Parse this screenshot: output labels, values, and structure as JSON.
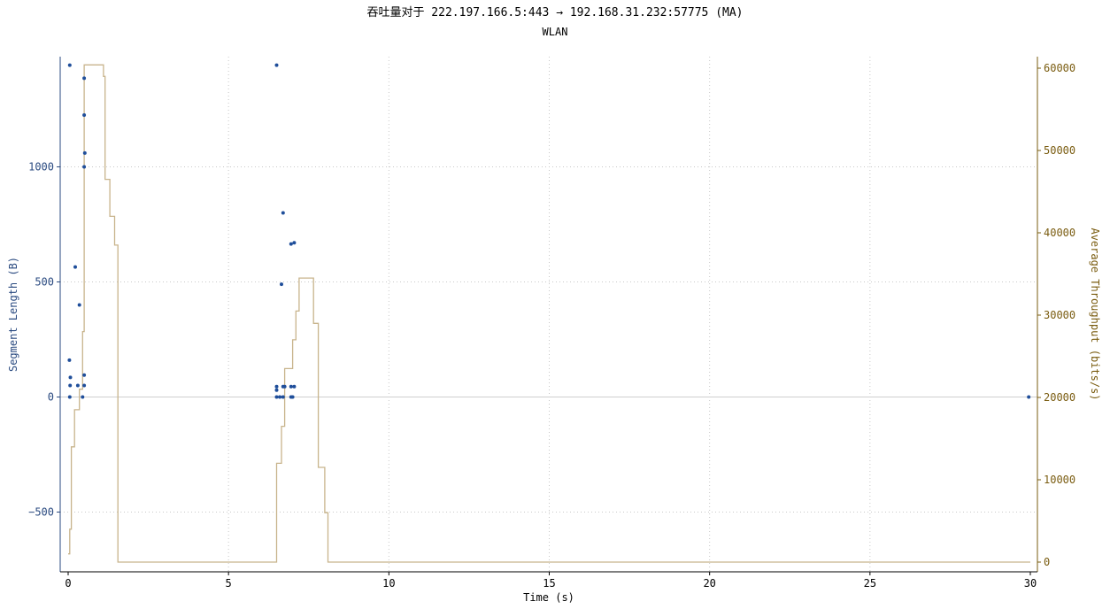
{
  "title": "吞吐量对于 222.197.166.5:443 → 192.168.31.232:57775 (MA)",
  "subtitle": "WLAN",
  "chart_data": {
    "type": "scatter",
    "xlabel": "Time (s)",
    "ylabel": "Segment Length (B)",
    "y2label": "Average Throughput (bits/s)",
    "xlim": [
      0,
      30
    ],
    "ylim": [
      -720,
      1445
    ],
    "y2lim": [
      0,
      60400
    ],
    "xticks": [
      0,
      5,
      10,
      15,
      20,
      25,
      30
    ],
    "yticks": [
      -500,
      0,
      500,
      1000
    ],
    "y2ticks": [
      0,
      10000,
      20000,
      30000,
      40000,
      50000,
      60000
    ],
    "grid": true,
    "colors": {
      "segments": "#1f4e9a",
      "throughput": "#c8b48c",
      "left_axis": "#2a4a80",
      "right_axis": "#7a5c10"
    },
    "series": [
      {
        "type": "scatter",
        "axis": "left",
        "points": [
          [
            0.05,
            1442
          ],
          [
            0.04,
            160
          ],
          [
            0.07,
            85
          ],
          [
            0.06,
            50
          ],
          [
            0.05,
            0
          ],
          [
            0.22,
            565
          ],
          [
            0.35,
            400
          ],
          [
            0.3,
            50
          ],
          [
            0.45,
            0
          ],
          [
            0.5,
            50
          ],
          [
            0.5,
            95
          ],
          [
            0.5,
            1385
          ],
          [
            0.5,
            1225
          ],
          [
            0.52,
            1060
          ],
          [
            0.5,
            1000
          ],
          [
            6.5,
            1442
          ],
          [
            6.7,
            800
          ],
          [
            6.65,
            490
          ],
          [
            6.95,
            665
          ],
          [
            7.05,
            670
          ],
          [
            6.5,
            45
          ],
          [
            6.5,
            30
          ],
          [
            6.6,
            0
          ],
          [
            6.5,
            0
          ],
          [
            6.7,
            45
          ],
          [
            6.75,
            45
          ],
          [
            6.7,
            0
          ],
          [
            6.95,
            45
          ],
          [
            7.05,
            45
          ],
          [
            7.0,
            0
          ],
          [
            6.95,
            0
          ],
          [
            29.95,
            0
          ]
        ]
      },
      {
        "type": "line",
        "axis": "right",
        "step": true,
        "points": [
          [
            0,
            1000
          ],
          [
            0.05,
            1000
          ],
          [
            0.05,
            4000
          ],
          [
            0.1,
            4000
          ],
          [
            0.1,
            14000
          ],
          [
            0.2,
            14000
          ],
          [
            0.2,
            18500
          ],
          [
            0.35,
            18500
          ],
          [
            0.35,
            21000
          ],
          [
            0.45,
            21000
          ],
          [
            0.45,
            28000
          ],
          [
            0.5,
            28000
          ],
          [
            0.5,
            60400
          ],
          [
            1.1,
            60400
          ],
          [
            1.1,
            59000
          ],
          [
            1.15,
            59000
          ],
          [
            1.15,
            46500
          ],
          [
            1.3,
            46500
          ],
          [
            1.3,
            42000
          ],
          [
            1.45,
            42000
          ],
          [
            1.45,
            38500
          ],
          [
            1.55,
            38500
          ],
          [
            1.55,
            0
          ],
          [
            6.5,
            0
          ],
          [
            6.5,
            12000
          ],
          [
            6.65,
            12000
          ],
          [
            6.65,
            16500
          ],
          [
            6.75,
            16500
          ],
          [
            6.75,
            23500
          ],
          [
            7.0,
            23500
          ],
          [
            7.0,
            27000
          ],
          [
            7.1,
            27000
          ],
          [
            7.1,
            30500
          ],
          [
            7.2,
            30500
          ],
          [
            7.2,
            34500
          ],
          [
            7.65,
            34500
          ],
          [
            7.65,
            29000
          ],
          [
            7.8,
            29000
          ],
          [
            7.8,
            11500
          ],
          [
            8.0,
            11500
          ],
          [
            8.0,
            6000
          ],
          [
            8.1,
            6000
          ],
          [
            8.1,
            0
          ],
          [
            30,
            0
          ]
        ]
      }
    ]
  }
}
